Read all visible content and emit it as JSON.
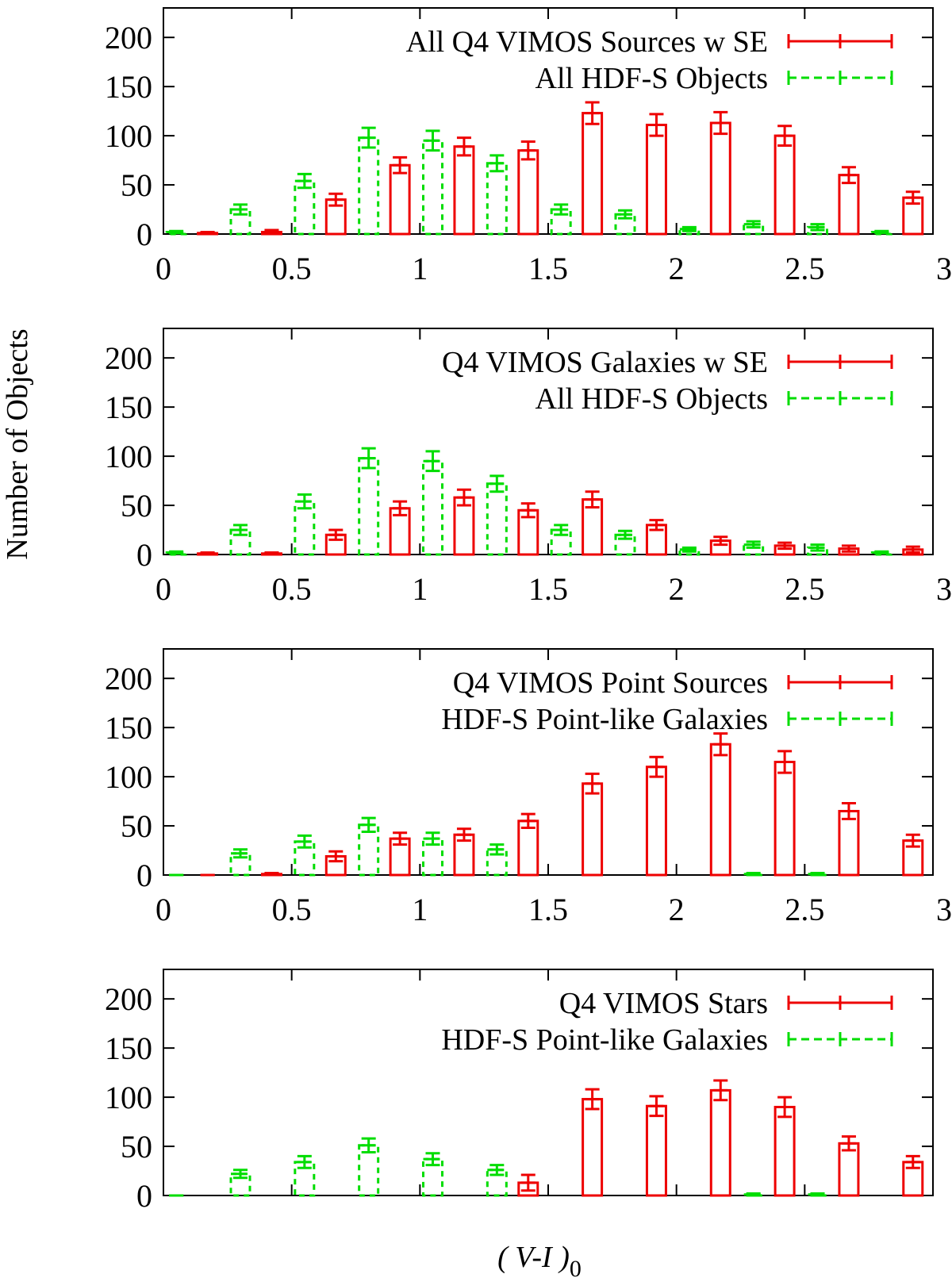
{
  "figure": {
    "ylabel": "Number of Objects",
    "xlabel_main": "( V-I )",
    "xlabel_sub": "0",
    "colors": {
      "red": "#ee0000",
      "green": "#00dd00",
      "axis": "#000000"
    }
  },
  "chart_data": [
    {
      "type": "bar",
      "title": "",
      "xlim": [
        0,
        3
      ],
      "ylim": [
        0,
        230
      ],
      "xticks": [
        "0",
        "0.5",
        "1",
        "1.5",
        "2",
        "2.5",
        "3"
      ],
      "yticks": [
        "0",
        "50",
        "100",
        "150",
        "200"
      ],
      "show_xticklabels": true,
      "legend_position": "top-right",
      "series": [
        {
          "name": "All Q4 VIMOS Sources w SE",
          "color": "#ee0000",
          "style": "solid",
          "x": [
            0.172,
            0.422,
            0.672,
            0.922,
            1.172,
            1.422,
            1.672,
            1.922,
            2.172,
            2.422,
            2.672,
            2.922
          ],
          "values": [
            1,
            2,
            35,
            70,
            89,
            85,
            123,
            111,
            113,
            100,
            60,
            37
          ],
          "errors": [
            1,
            2,
            6,
            8,
            9,
            9,
            11,
            11,
            11,
            10,
            8,
            6
          ]
        },
        {
          "name": "All HDF-S Objects",
          "color": "#00dd00",
          "style": "dashed",
          "x": [
            0.05,
            0.3,
            0.55,
            0.8,
            1.05,
            1.3,
            1.55,
            1.8,
            2.05,
            2.3,
            2.55,
            2.8
          ],
          "values": [
            2,
            25,
            54,
            98,
            95,
            72,
            25,
            20,
            5,
            10,
            7,
            2
          ],
          "errors": [
            1,
            5,
            7,
            10,
            10,
            8,
            5,
            4,
            2,
            3,
            3,
            1
          ]
        }
      ]
    },
    {
      "type": "bar",
      "title": "",
      "xlim": [
        0,
        3
      ],
      "ylim": [
        0,
        230
      ],
      "xticks": [
        "0",
        "0.5",
        "1",
        "1.5",
        "2",
        "2.5",
        "3"
      ],
      "yticks": [
        "0",
        "50",
        "100",
        "150",
        "200"
      ],
      "show_xticklabels": true,
      "legend_position": "top-right",
      "series": [
        {
          "name": "Q4 VIMOS Galaxies w SE",
          "color": "#ee0000",
          "style": "solid",
          "x": [
            0.172,
            0.422,
            0.672,
            0.922,
            1.172,
            1.422,
            1.672,
            1.922,
            2.172,
            2.422,
            2.672,
            2.922
          ],
          "values": [
            1,
            1,
            20,
            47,
            58,
            45,
            56,
            30,
            14,
            9,
            6,
            5
          ],
          "errors": [
            1,
            1,
            5,
            7,
            8,
            7,
            8,
            5,
            4,
            3,
            3,
            3
          ]
        },
        {
          "name": "All HDF-S Objects",
          "color": "#00dd00",
          "style": "dashed",
          "x": [
            0.05,
            0.3,
            0.55,
            0.8,
            1.05,
            1.3,
            1.55,
            1.8,
            2.05,
            2.3,
            2.55,
            2.8
          ],
          "values": [
            2,
            25,
            54,
            98,
            95,
            72,
            25,
            20,
            5,
            10,
            7,
            2
          ],
          "errors": [
            1,
            5,
            7,
            10,
            10,
            8,
            5,
            4,
            2,
            3,
            3,
            1
          ]
        }
      ]
    },
    {
      "type": "bar",
      "title": "",
      "xlim": [
        0,
        3
      ],
      "ylim": [
        0,
        230
      ],
      "xticks": [
        "0",
        "0.5",
        "1",
        "1.5",
        "2",
        "2.5",
        "3"
      ],
      "yticks": [
        "0",
        "50",
        "100",
        "150",
        "200"
      ],
      "show_xticklabels": true,
      "legend_position": "top-right",
      "series": [
        {
          "name": "Q4 VIMOS Point Sources",
          "color": "#ee0000",
          "style": "solid",
          "x": [
            0.172,
            0.422,
            0.672,
            0.922,
            1.172,
            1.422,
            1.672,
            1.922,
            2.172,
            2.422,
            2.672,
            2.922
          ],
          "values": [
            0,
            1,
            19,
            37,
            41,
            55,
            93,
            110,
            133,
            115,
            65,
            35
          ],
          "errors": [
            0,
            1,
            5,
            6,
            6,
            7,
            10,
            10,
            11,
            11,
            8,
            6
          ]
        },
        {
          "name": "HDF-S Point-like Galaxies",
          "color": "#00dd00",
          "style": "dashed",
          "x": [
            0.05,
            0.3,
            0.55,
            0.8,
            1.05,
            1.3,
            1.55,
            1.8,
            2.05,
            2.3,
            2.55,
            2.8
          ],
          "values": [
            0,
            22,
            34,
            51,
            37,
            26,
            null,
            null,
            null,
            1,
            1,
            null
          ],
          "errors": [
            0,
            4,
            6,
            7,
            6,
            5,
            0,
            0,
            0,
            1,
            1,
            0
          ]
        }
      ]
    },
    {
      "type": "bar",
      "title": "",
      "xlim": [
        0,
        3
      ],
      "ylim": [
        0,
        230
      ],
      "xticks": [
        "0",
        "0.5",
        "1",
        "1.5",
        "2",
        "2.5",
        "3"
      ],
      "yticks": [
        "0",
        "50",
        "100",
        "150",
        "200"
      ],
      "show_xticklabels": false,
      "legend_position": "top-right",
      "series": [
        {
          "name": "Q4 VIMOS Stars",
          "color": "#ee0000",
          "style": "solid",
          "x": [
            0.172,
            0.422,
            0.672,
            0.922,
            1.172,
            1.422,
            1.672,
            1.922,
            2.172,
            2.422,
            2.672,
            2.922
          ],
          "values": [
            null,
            null,
            null,
            null,
            null,
            13,
            98,
            91,
            107,
            90,
            53,
            34
          ],
          "errors": [
            0,
            0,
            0,
            0,
            0,
            8,
            10,
            10,
            10,
            10,
            7,
            6
          ]
        },
        {
          "name": "HDF-S Point-like Galaxies",
          "color": "#00dd00",
          "style": "dashed",
          "x": [
            0.05,
            0.3,
            0.55,
            0.8,
            1.05,
            1.3,
            1.55,
            1.8,
            2.05,
            2.3,
            2.55,
            2.8
          ],
          "values": [
            0,
            22,
            34,
            51,
            37,
            26,
            null,
            null,
            null,
            1,
            1,
            null
          ],
          "errors": [
            0,
            4,
            6,
            7,
            6,
            5,
            0,
            0,
            0,
            1,
            1,
            0
          ]
        }
      ]
    }
  ]
}
